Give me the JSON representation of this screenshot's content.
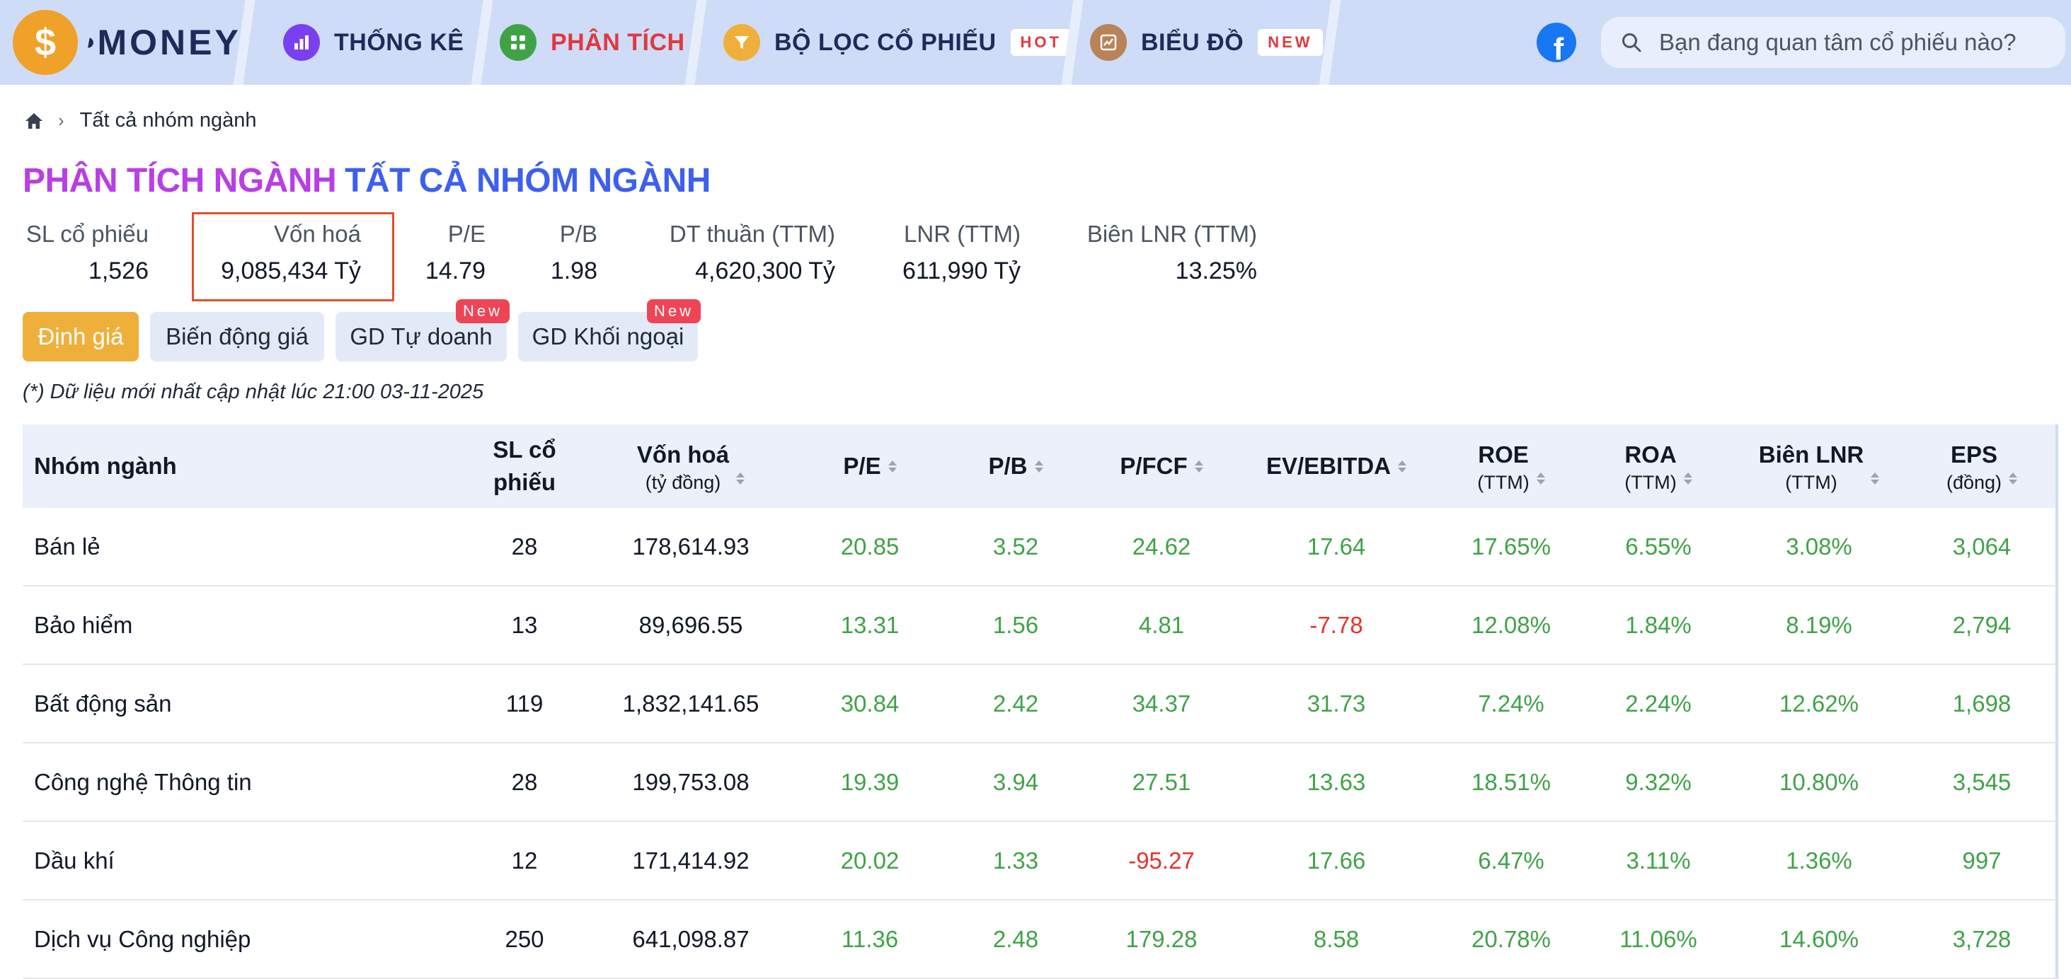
{
  "nav": {
    "logo_symbol": "$",
    "logo_text": "•MONEY",
    "tabs": [
      {
        "label": "THỐNG KÊ",
        "icon": "bar-chart-icon",
        "color": "#7b3ff2",
        "text_color": "#1e2a5a",
        "badge": ""
      },
      {
        "label": "PHÂN TÍCH",
        "icon": "grid-icon",
        "color": "#3fa346",
        "text_color": "#e0393e",
        "badge": ""
      },
      {
        "label": "BỘ LỌC CỔ PHIẾU",
        "icon": "filter-icon",
        "color": "#efb03b",
        "text_color": "#1e2a5a",
        "badge": "HOT",
        "badge_color": "#e0393e"
      },
      {
        "label": "BIỂU ĐỒ",
        "icon": "chart-board-icon",
        "color": "#b98358",
        "text_color": "#1e2a5a",
        "badge": "NEW",
        "badge_color": "#e0393e"
      }
    ],
    "facebook_icon": "facebook-icon",
    "search_placeholder": "Bạn đang quan tâm cổ phiếu nào?"
  },
  "breadcrumb": {
    "home_icon": "home-icon",
    "current": "Tất cả nhóm ngành"
  },
  "title": {
    "part1": "PHÂN TÍCH NGÀNH",
    "part2": "TẤT CẢ NHÓM NGÀNH"
  },
  "stats": [
    {
      "label": "SL cổ phiếu",
      "value": "1,526"
    },
    {
      "label": "Vốn hoá",
      "value": "9,085,434 Tỷ"
    },
    {
      "label": "P/E",
      "value": "14.79"
    },
    {
      "label": "P/B",
      "value": "1.98"
    },
    {
      "label": "DT thuần (TTM)",
      "value": "4,620,300 Tỷ"
    },
    {
      "label": "LNR (TTM)",
      "value": "611,990 Tỷ"
    },
    {
      "label": "Biên LNR (TTM)",
      "value": "13.25%"
    }
  ],
  "tabs": [
    {
      "label": "Định giá",
      "active": true,
      "badge": ""
    },
    {
      "label": "Biến động giá",
      "active": false,
      "badge": ""
    },
    {
      "label": "GD Tự doanh",
      "active": false,
      "badge": "New"
    },
    {
      "label": "GD Khối ngoại",
      "active": false,
      "badge": "New"
    }
  ],
  "note": "(*) Dữ liệu mới nhất cập nhật lúc 21:00 03-11-2025",
  "table": {
    "headers": [
      {
        "h1": "Nhóm ngành",
        "h2": "",
        "sort": false
      },
      {
        "h1": "SL cổ",
        "h2": "phiếu",
        "sort": false,
        "h2_bold": true
      },
      {
        "h1": "Vốn hoá",
        "h2": "(tỷ đồng)",
        "sort": true
      },
      {
        "h1": "P/E",
        "h2": "",
        "sort": true
      },
      {
        "h1": "P/B",
        "h2": "",
        "sort": true
      },
      {
        "h1": "P/FCF",
        "h2": "",
        "sort": true
      },
      {
        "h1": "EV/EBITDA",
        "h2": "",
        "sort": true
      },
      {
        "h1": "ROE",
        "h2": "(TTM)",
        "sort": true
      },
      {
        "h1": "ROA",
        "h2": "(TTM)",
        "sort": true
      },
      {
        "h1": "Biên LNR",
        "h2": "(TTM)",
        "sort": true
      },
      {
        "h1": "EPS",
        "h2": "(đồng)",
        "sort": true
      }
    ],
    "rows": [
      [
        "Bán lẻ",
        "28",
        "178,614.93",
        "20.85",
        "3.52",
        "24.62",
        "17.64",
        "17.65%",
        "6.55%",
        "3.08%",
        "3,064"
      ],
      [
        "Bảo hiểm",
        "13",
        "89,696.55",
        "13.31",
        "1.56",
        "4.81",
        "-7.78",
        "12.08%",
        "1.84%",
        "8.19%",
        "2,794"
      ],
      [
        "Bất động sản",
        "119",
        "1,832,141.65",
        "30.84",
        "2.42",
        "34.37",
        "31.73",
        "7.24%",
        "2.24%",
        "12.62%",
        "1,698"
      ],
      [
        "Công nghệ Thông tin",
        "28",
        "199,753.08",
        "19.39",
        "3.94",
        "27.51",
        "13.63",
        "18.51%",
        "9.32%",
        "10.80%",
        "3,545"
      ],
      [
        "Dầu khí",
        "12",
        "171,414.92",
        "20.02",
        "1.33",
        "-95.27",
        "17.66",
        "6.47%",
        "3.11%",
        "1.36%",
        "997"
      ],
      [
        "Dịch vụ Công nghiệp",
        "250",
        "641,098.87",
        "11.36",
        "2.48",
        "179.28",
        "8.58",
        "20.78%",
        "11.06%",
        "14.60%",
        "3,728"
      ]
    ]
  }
}
